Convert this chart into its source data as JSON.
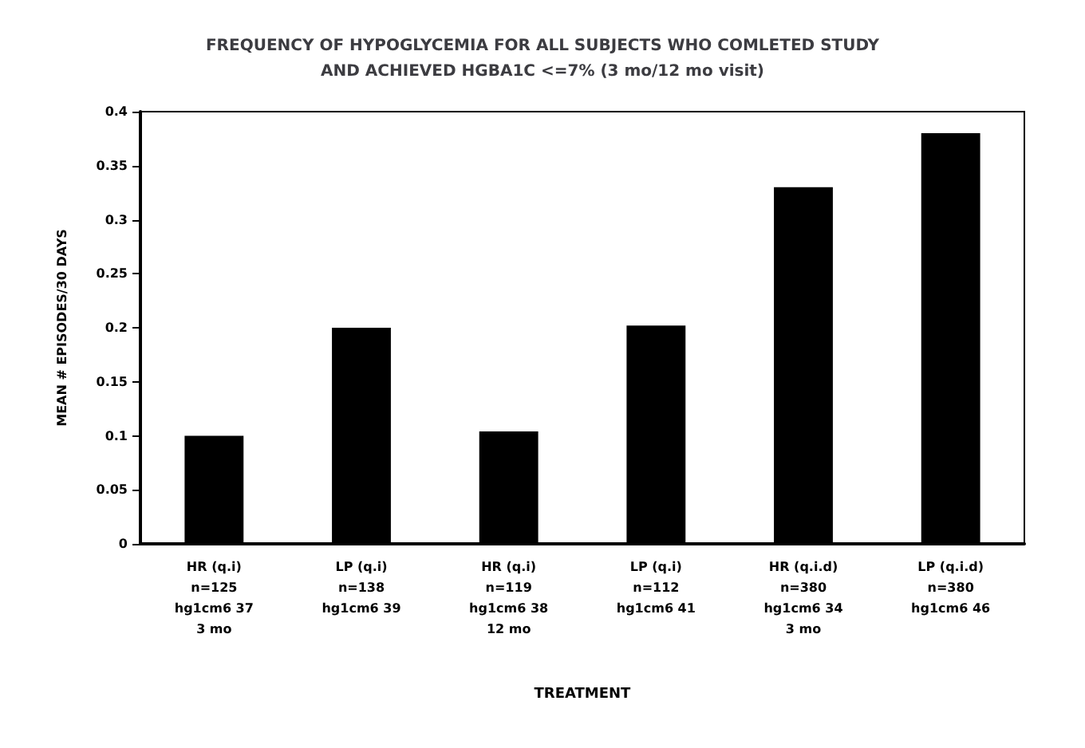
{
  "chart_data": {
    "type": "bar",
    "title": "FREQUENCY OF HYPOGLYCEMIA FOR ALL SUBJECTS WHO COMLETED STUDY\nAND ACHIEVED HGBA1C <=7% (3 mo/12 mo visit)",
    "xlabel": "TREATMENT",
    "ylabel": "MEAN # EPISODES/30 DAYS",
    "categories": [
      "HR (q.i)\nn=125\nhg1cm6 37\n3 mo",
      "LP (q.i)\nn=138\nhg1cm6 39",
      "HR (q.i)\nn=119\nhg1cm6 38\n12 mo",
      "LP (q.i)\nn=112\nhg1cm6 41",
      "HR (q.i.d)\nn=380\nhg1cm6 34\n3 mo",
      "LP (q.i.d)\nn=380\nhg1cm6 46"
    ],
    "values": [
      0.1,
      0.2,
      0.104,
      0.202,
      0.33,
      0.38
    ],
    "color": "#000000",
    "ylim": [
      0,
      0.4
    ],
    "yticks": [
      0,
      0.05,
      0.1,
      0.15,
      0.2,
      0.25,
      0.3,
      0.35,
      0.4
    ],
    "grid": false
  }
}
